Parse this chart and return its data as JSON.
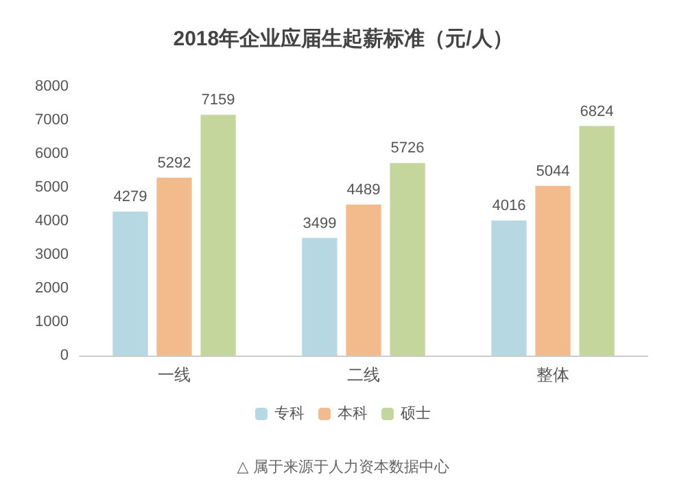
{
  "chart_data": {
    "type": "bar",
    "title": "2018年企业应届生起薪标准（元/人）",
    "categories": [
      "一线",
      "二线",
      "整体"
    ],
    "series": [
      {
        "name": "专科",
        "color": "#b5d8e3",
        "values": [
          4279,
          3499,
          4016
        ]
      },
      {
        "name": "本科",
        "color": "#f3ba8c",
        "values": [
          5292,
          4489,
          5044
        ]
      },
      {
        "name": "硕士",
        "color": "#c4d69c",
        "values": [
          7159,
          5726,
          6824
        ]
      }
    ],
    "ylim": [
      0,
      8000
    ],
    "yticks": [
      0,
      1000,
      2000,
      3000,
      4000,
      5000,
      6000,
      7000,
      8000
    ],
    "data_labels": true,
    "legend": "bottom",
    "grid": false,
    "annotations": [
      "△ 属于来源于人力资本数据中心"
    ]
  }
}
